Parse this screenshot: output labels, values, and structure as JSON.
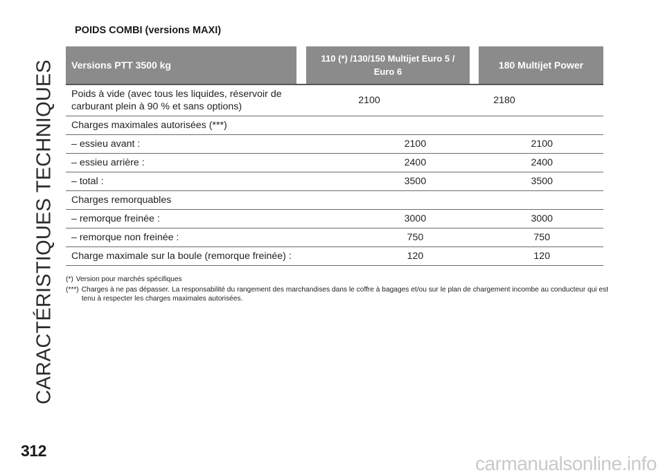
{
  "side_title": "CARACTÉRISTIQUES TECHNIQUES",
  "page_number": "312",
  "section_title": "POIDS COMBI (versions MAXI)",
  "table": {
    "headers": [
      "Versions PTT 3500 kg",
      "110 (*) /130/150 Multijet Euro 5 / Euro 6",
      "180 Multijet Power"
    ],
    "rows": [
      {
        "label": "Poids à vide (avec tous les liquides, réservoir de carburant plein à 90 % et sans options)",
        "v1": "2100",
        "v2": "2180"
      },
      {
        "label": "Charges maximales autorisées (***)",
        "v1": "",
        "v2": ""
      },
      {
        "label": "– essieu avant :",
        "v1": "2100",
        "v2": "2100"
      },
      {
        "label": "– essieu arrière :",
        "v1": "2400",
        "v2": "2400"
      },
      {
        "label": "– total :",
        "v1": "3500",
        "v2": "3500"
      },
      {
        "label": "Charges remorquables",
        "v1": "",
        "v2": ""
      },
      {
        "label": "– remorque freinée :",
        "v1": "3000",
        "v2": "3000"
      },
      {
        "label": "– remorque non freinée :",
        "v1": "750",
        "v2": "750"
      },
      {
        "label": "Charge maximale sur la boule (remorque freinée) :",
        "v1": "120",
        "v2": "120"
      }
    ]
  },
  "footnotes": [
    {
      "mark": "(*)",
      "text": "Version pour marchés spécifiques"
    },
    {
      "mark": "(***)",
      "text": "Charges à ne pas dépasser. La responsabilité du rangement des marchandises dans le coffre à bagages et/ou sur le plan de chargement incombe au conducteur qui est tenu à respecter les charges maximales autorisées."
    }
  ],
  "watermark": "carmanualsonline.info"
}
